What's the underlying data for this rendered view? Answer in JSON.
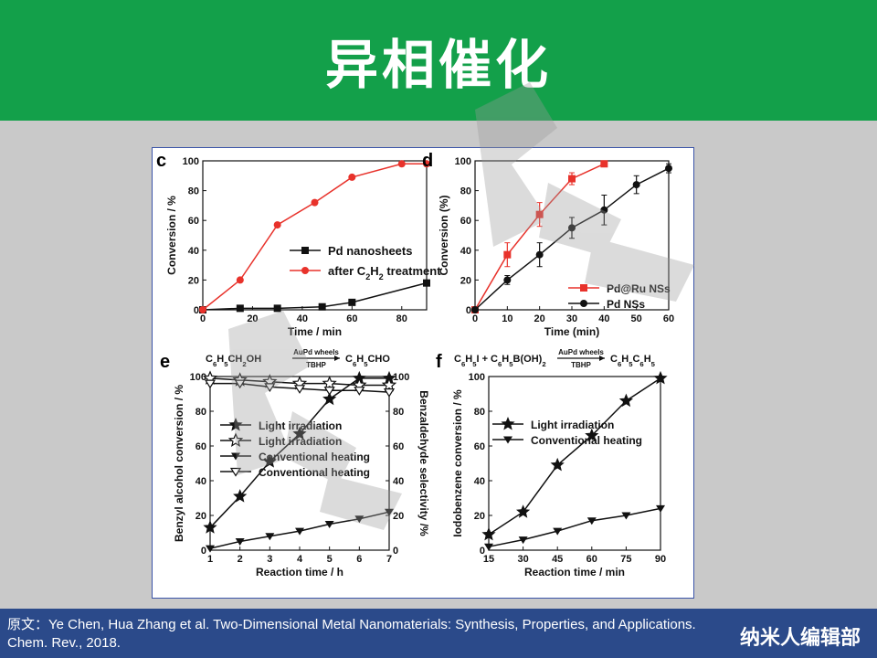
{
  "title": "异相催化",
  "footer": {
    "citation": "原文：Ye Chen, Hua Zhang et al. Two-Dimensional Metal Nanomaterials: Synthesis, Properties, and Applications. Chem. Rev., 2018.",
    "brand": "纳米人编辑部"
  },
  "colors": {
    "header": "#13a04a",
    "footer": "#2b4a8a",
    "red": "#e8322b",
    "black": "#111111"
  },
  "chart_data": [
    {
      "panel": "c",
      "type": "line",
      "xlabel": "Time / min",
      "ylabel": "Conversion / %",
      "xlim": [
        0,
        90
      ],
      "ylim": [
        0,
        100
      ],
      "xticks": [
        0,
        20,
        40,
        60,
        80
      ],
      "yticks": [
        0,
        20,
        40,
        60,
        80,
        100
      ],
      "series": [
        {
          "name": "Pd nanosheets",
          "color": "#111111",
          "marker": "square",
          "x": [
            0,
            15,
            30,
            48,
            60,
            90
          ],
          "y": [
            0,
            1,
            1,
            2,
            5,
            18
          ]
        },
        {
          "name": "after C2H2 treatment",
          "color": "#e8322b",
          "marker": "circle",
          "x": [
            0,
            15,
            30,
            45,
            60,
            80,
            90
          ],
          "y": [
            0,
            20,
            57,
            72,
            89,
            98,
            98
          ]
        }
      ]
    },
    {
      "panel": "d",
      "type": "line",
      "xlabel": "Time (min)",
      "ylabel": "Conversion (%)",
      "xlim": [
        0,
        60
      ],
      "ylim": [
        0,
        100
      ],
      "xticks": [
        0,
        10,
        20,
        30,
        40,
        50,
        60
      ],
      "yticks": [
        0,
        20,
        40,
        60,
        80,
        100
      ],
      "series": [
        {
          "name": "Pd@Ru NSs",
          "color": "#e8322b",
          "marker": "square",
          "x": [
            0,
            10,
            20,
            30,
            40
          ],
          "y": [
            0,
            37,
            64,
            88,
            98
          ],
          "err": [
            0,
            8,
            8,
            4,
            0
          ]
        },
        {
          "name": "Pd NSs",
          "color": "#111111",
          "marker": "circle",
          "x": [
            0,
            10,
            20,
            30,
            40,
            50,
            60
          ],
          "y": [
            0,
            20,
            37,
            55,
            67,
            84,
            95
          ],
          "err": [
            0,
            3,
            8,
            7,
            10,
            6,
            3
          ]
        }
      ]
    },
    {
      "panel": "e",
      "type": "line",
      "reaction": {
        "reactant": "C6H5CH2OH",
        "arrow_top": "AuPd wheels",
        "arrow_bottom": "TBHP",
        "product": "C6H5CHO"
      },
      "xlabel": "Reaction time / h",
      "ylabel": "Benzyl alcohol conversion / %",
      "y2label": "Benzaldehyde selectivity /%",
      "xlim": [
        1,
        7
      ],
      "ylim": [
        0,
        100
      ],
      "xticks": [
        1,
        2,
        3,
        4,
        5,
        6,
        7
      ],
      "yticks": [
        0,
        20,
        40,
        60,
        80,
        100
      ],
      "series": [
        {
          "name": "Light irradiation",
          "marker": "star-filled",
          "x": [
            1,
            2,
            3,
            4,
            5,
            6,
            7
          ],
          "y": [
            13,
            31,
            51,
            67,
            87,
            99,
            99
          ]
        },
        {
          "name": "Light irradiation",
          "marker": "star-open",
          "x": [
            1,
            2,
            3,
            4,
            5,
            6,
            7
          ],
          "y": [
            99,
            98,
            97,
            96,
            96,
            95,
            95
          ]
        },
        {
          "name": "Conventional heating",
          "marker": "tri-down-filled",
          "x": [
            1,
            2,
            3,
            4,
            5,
            6,
            7
          ],
          "y": [
            1,
            5,
            8,
            11,
            15,
            18,
            22
          ]
        },
        {
          "name": "Conventional heating",
          "marker": "tri-down-open",
          "x": [
            1,
            2,
            3,
            4,
            5,
            6,
            7
          ],
          "y": [
            96,
            96,
            94,
            93,
            92,
            92,
            91
          ]
        }
      ]
    },
    {
      "panel": "f",
      "type": "line",
      "reaction": {
        "reactant": "C6H5I + C6H5B(OH)2",
        "arrow_top": "AuPd wheels",
        "arrow_bottom": "TBHP",
        "product": "C6H5C6H5"
      },
      "xlabel": "Reaction time / min",
      "ylabel": "Iodobenzene conversion / %",
      "xlim": [
        15,
        90
      ],
      "ylim": [
        0,
        100
      ],
      "xticks": [
        15,
        30,
        45,
        60,
        75,
        90
      ],
      "yticks": [
        0,
        20,
        40,
        60,
        80,
        100
      ],
      "series": [
        {
          "name": "Light irradiation",
          "marker": "star-filled",
          "x": [
            15,
            30,
            45,
            60,
            75,
            90
          ],
          "y": [
            9,
            22,
            49,
            66,
            86,
            99
          ]
        },
        {
          "name": "Conventional heating",
          "marker": "tri-down-filled",
          "x": [
            15,
            30,
            45,
            60,
            75,
            90
          ],
          "y": [
            2,
            6,
            11,
            17,
            20,
            24
          ]
        }
      ]
    }
  ]
}
